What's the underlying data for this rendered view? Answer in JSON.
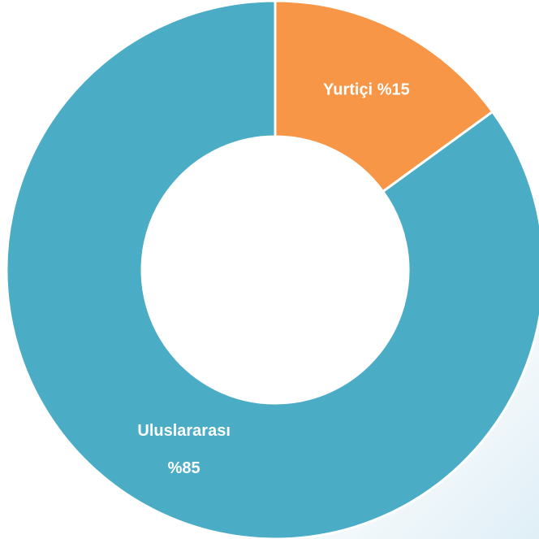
{
  "chart_data": {
    "type": "donut",
    "categories": [
      "Yurtiçi",
      "Uluslararası"
    ],
    "values": [
      15,
      85
    ],
    "value_labels": [
      "%15",
      "%85"
    ],
    "colors": [
      "#F79646",
      "#4BACC6"
    ]
  }
}
